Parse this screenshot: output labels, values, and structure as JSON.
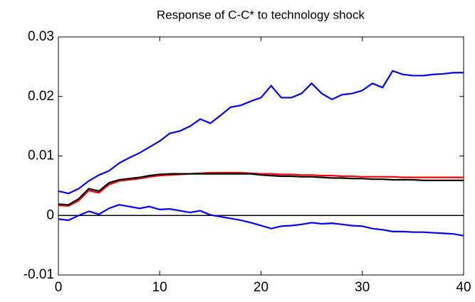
{
  "chart_data": {
    "type": "line",
    "title": "Response of C-C* to technology shock",
    "x": [
      0,
      1,
      2,
      3,
      4,
      5,
      6,
      7,
      8,
      9,
      10,
      11,
      12,
      13,
      14,
      15,
      16,
      17,
      18,
      19,
      20,
      21,
      22,
      23,
      24,
      25,
      26,
      27,
      28,
      29,
      30,
      31,
      32,
      33,
      34,
      35,
      36,
      37,
      38,
      39,
      40
    ],
    "series": [
      {
        "color": "#0000ff",
        "values": [
          0.0041,
          0.0037,
          0.0045,
          0.0058,
          0.0068,
          0.0075,
          0.0088,
          0.0097,
          0.0105,
          0.0115,
          0.0125,
          0.0138,
          0.0142,
          0.015,
          0.0162,
          0.0155,
          0.0168,
          0.0182,
          0.0185,
          0.0192,
          0.0198,
          0.0218,
          0.0198,
          0.0198,
          0.0205,
          0.0222,
          0.0205,
          0.0195,
          0.0203,
          0.0205,
          0.021,
          0.0222,
          0.0215,
          0.0243,
          0.0237,
          0.0235,
          0.0235,
          0.0237,
          0.0238,
          0.024,
          0.024
        ]
      },
      {
        "color": "#0000ff",
        "values": [
          -0.0006,
          -0.0008,
          0,
          0.0007,
          0.0002,
          0.0012,
          0.0018,
          0.0015,
          0.0012,
          0.0015,
          0.001,
          0.0011,
          0.0008,
          0.0005,
          0.0008,
          0.0001,
          -0.0002,
          -0.0005,
          -0.0008,
          -0.0012,
          -0.0017,
          -0.0022,
          -0.0018,
          -0.0017,
          -0.0015,
          -0.0012,
          -0.0014,
          -0.0013,
          -0.0015,
          -0.0017,
          -0.0018,
          -0.0022,
          -0.0024,
          -0.0027,
          -0.0027,
          -0.0028,
          -0.0028,
          -0.0029,
          -0.003,
          -0.0031,
          -0.0034
        ]
      },
      {
        "color": "#ff0000",
        "values": [
          0.0017,
          0.0016,
          0.0025,
          0.0042,
          0.0038,
          0.0052,
          0.0058,
          0.006,
          0.0062,
          0.0065,
          0.0067,
          0.0068,
          0.0069,
          0.007,
          0.0071,
          0.0072,
          0.0072,
          0.0072,
          0.0072,
          0.0071,
          0.007,
          0.007,
          0.0069,
          0.0069,
          0.0068,
          0.0068,
          0.0067,
          0.0067,
          0.0066,
          0.0066,
          0.0065,
          0.0065,
          0.0065,
          0.0065,
          0.0064,
          0.0064,
          0.0064,
          0.0064,
          0.0064,
          0.0064,
          0.0064
        ]
      },
      {
        "color": "#000000",
        "values": [
          0.0019,
          0.0018,
          0.0028,
          0.0045,
          0.0041,
          0.0055,
          0.006,
          0.0062,
          0.0064,
          0.0067,
          0.0069,
          0.007,
          0.007,
          0.007,
          0.007,
          0.007,
          0.007,
          0.007,
          0.007,
          0.007,
          0.0068,
          0.0067,
          0.0066,
          0.0066,
          0.0065,
          0.0065,
          0.0064,
          0.0063,
          0.0063,
          0.0062,
          0.0062,
          0.0061,
          0.0061,
          0.006,
          0.006,
          0.006,
          0.0059,
          0.0059,
          0.0059,
          0.0059,
          0.0059
        ]
      }
    ],
    "xlim": [
      0,
      40
    ],
    "xticks": [
      0,
      10,
      20,
      30,
      40
    ],
    "ylim": [
      -0.01,
      0.03
    ],
    "yticks": [
      -0.01,
      0,
      0.01,
      0.02,
      0.03
    ],
    "zero_line": true,
    "grid": false
  }
}
